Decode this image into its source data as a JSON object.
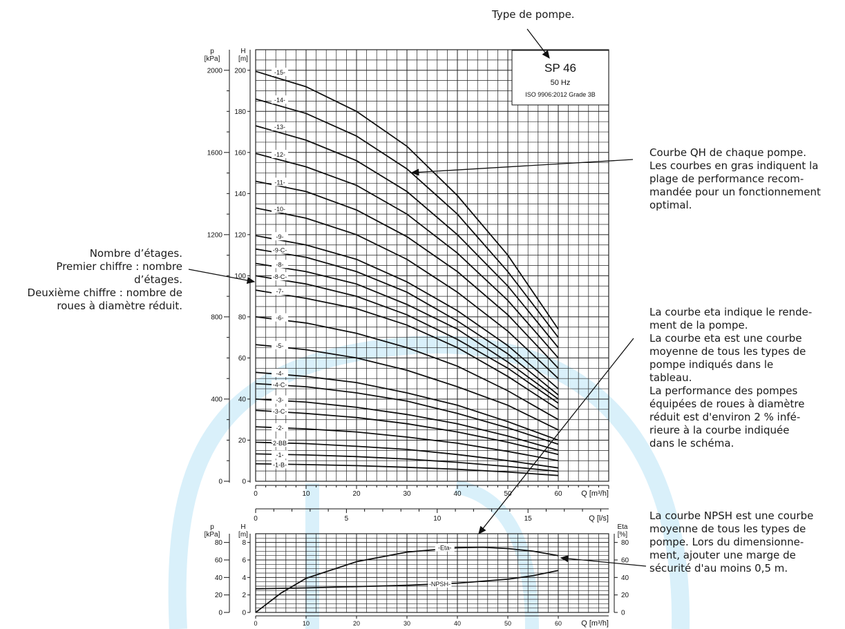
{
  "annotations": {
    "pump_type": "Type de pompe.",
    "qh_curve": "Courbe QH de chaque pompe.\nLes courbes en gras indiquent la\nplage de performance recom-\nmandée pour un fonctionnement\noptimal.",
    "stages": "Nombre d’étages.\nPremier chiffre : nombre\nd’étages.\nDeuxième chiffre : nombre de\nroues à diamètre réduit.",
    "eta_curve": "La courbe eta indique le rende-\nment de la pompe.\nLa courbe eta est une courbe\nmoyenne de tous les types de\npompe indiqués dans le\ntableau.\nLa performance des pompes\néquipées de roues à diamètre\nréduit est d'environ 2 % infé-\nrieure à la courbe indiquée\ndans le schéma.",
    "npsh_curve": "La courbe NPSH est une courbe\nmoyenne de tous les types de\npompe. Lors du dimensionne-\nment, ajouter une marge de\nsécurité d'au moins 0,5 m."
  },
  "title_box": {
    "model": "SP 46",
    "frequency": "50 Hz",
    "standard": "ISO 9906:2012 Grade 3B"
  },
  "colors": {
    "grid": "#222222",
    "curve": "#111111",
    "watermark": "#d9f0fa"
  },
  "chart_data": [
    {
      "type": "line",
      "xlabel": "Q [m³/h]",
      "ylabel": "H\n[m]",
      "ylabel_secondary": "p\n[kPa]",
      "x_ticks": [
        0,
        10,
        20,
        30,
        40,
        50,
        60
      ],
      "y_ticks": [
        0,
        20,
        40,
        60,
        80,
        100,
        120,
        140,
        160,
        180,
        200
      ],
      "p_ticks": [
        0,
        400,
        800,
        1200,
        1600,
        2000
      ],
      "xlim": [
        0,
        70
      ],
      "ylim": [
        0,
        210
      ],
      "grid": true,
      "series": [
        {
          "name": "15",
          "x": [
            0,
            10,
            20,
            30,
            40,
            50,
            60
          ],
          "y": [
            199.5,
            192,
            180,
            163,
            139,
            110,
            74
          ]
        },
        {
          "name": "14",
          "x": [
            0,
            10,
            20,
            30,
            40,
            50,
            60
          ],
          "y": [
            186,
            179,
            168,
            152,
            130,
            102,
            70
          ]
        },
        {
          "name": "13",
          "x": [
            0,
            10,
            20,
            30,
            40,
            50,
            60
          ],
          "y": [
            173,
            166,
            156,
            141,
            120,
            95,
            65
          ]
        },
        {
          "name": "12",
          "x": [
            0,
            10,
            20,
            30,
            40,
            50,
            60
          ],
          "y": [
            159.5,
            153,
            144,
            130,
            111,
            88,
            60
          ]
        },
        {
          "name": "11",
          "x": [
            0,
            10,
            20,
            30,
            40,
            50,
            60
          ],
          "y": [
            146,
            141,
            132,
            119,
            102,
            81,
            55
          ]
        },
        {
          "name": "10",
          "x": [
            0,
            10,
            20,
            30,
            40,
            50,
            60
          ],
          "y": [
            133,
            128,
            120,
            108,
            92,
            73,
            50
          ]
        },
        {
          "name": "9",
          "x": [
            0,
            10,
            20,
            30,
            40,
            50,
            60
          ],
          "y": [
            119.5,
            115,
            108,
            97,
            83,
            66,
            45
          ]
        },
        {
          "name": "9-C",
          "x": [
            0,
            10,
            20,
            30,
            40,
            50,
            60
          ],
          "y": [
            113,
            109,
            102,
            92,
            78,
            62,
            42
          ]
        },
        {
          "name": "8",
          "x": [
            0,
            10,
            20,
            30,
            40,
            50,
            60
          ],
          "y": [
            106,
            102,
            96,
            86,
            74,
            58,
            40
          ]
        },
        {
          "name": "8-C",
          "x": [
            0,
            10,
            20,
            30,
            40,
            50,
            60
          ],
          "y": [
            100,
            96,
            90,
            81,
            69,
            55,
            38
          ]
        },
        {
          "name": "7",
          "x": [
            0,
            10,
            20,
            30,
            40,
            50,
            60
          ],
          "y": [
            93,
            89,
            84,
            76,
            65,
            51,
            35
          ]
        },
        {
          "name": "6",
          "x": [
            0,
            10,
            20,
            30,
            40,
            50,
            60
          ],
          "y": [
            80,
            77,
            72,
            65,
            56,
            44,
            30
          ]
        },
        {
          "name": "5",
          "x": [
            0,
            10,
            20,
            30,
            40,
            50,
            60
          ],
          "y": [
            66.5,
            64,
            60,
            54,
            46,
            37,
            25
          ]
        },
        {
          "name": "4",
          "x": [
            0,
            10,
            20,
            30,
            40,
            50,
            60
          ],
          "y": [
            53,
            51,
            48,
            43,
            37,
            29,
            20
          ]
        },
        {
          "name": "4-C",
          "x": [
            0,
            10,
            20,
            30,
            40,
            50,
            60
          ],
          "y": [
            47.5,
            46,
            43,
            39,
            33,
            26,
            18
          ]
        },
        {
          "name": "3",
          "x": [
            0,
            10,
            20,
            30,
            40,
            50,
            60
          ],
          "y": [
            40,
            38.5,
            36,
            32.5,
            28,
            22,
            15
          ]
        },
        {
          "name": "3-C",
          "x": [
            0,
            10,
            20,
            30,
            40,
            50,
            60
          ],
          "y": [
            34.5,
            33,
            31,
            28,
            24,
            19,
            13
          ]
        },
        {
          "name": "2",
          "x": [
            0,
            10,
            20,
            30,
            40,
            50,
            60
          ],
          "y": [
            26.5,
            25.5,
            24,
            21.5,
            18.5,
            14.5,
            10
          ]
        },
        {
          "name": "2-BB",
          "x": [
            0,
            10,
            20,
            30,
            40,
            50,
            60
          ],
          "y": [
            19,
            18.3,
            17,
            15.5,
            13,
            10,
            6.5
          ]
        },
        {
          "name": "1",
          "x": [
            0,
            10,
            20,
            30,
            40,
            50,
            60
          ],
          "y": [
            13.3,
            12.8,
            12,
            10.8,
            9.2,
            7.2,
            4.8
          ]
        },
        {
          "name": "1-B",
          "x": [
            0,
            10,
            20,
            30,
            40,
            50,
            60
          ],
          "y": [
            8.5,
            8.1,
            7.6,
            6.8,
            5.8,
            4.5,
            2.8
          ]
        }
      ]
    },
    {
      "type": "line",
      "xlabel": "Q [m³/h]",
      "x2label": "Q [l/s]",
      "ylabel": "H\n[m]",
      "ylabel_secondary": "p\n[kPa]",
      "ylabel_right": "Eta\n[%]",
      "x_ticks": [
        0,
        10,
        20,
        30,
        40,
        50,
        60
      ],
      "x2_ticks": [
        0,
        5,
        10,
        15
      ],
      "y_ticks": [
        0,
        2,
        4,
        6,
        8
      ],
      "p_ticks": [
        0,
        20,
        40,
        60,
        80
      ],
      "eta_ticks": [
        0,
        20,
        40,
        60,
        80
      ],
      "xlim": [
        0,
        70
      ],
      "ylim": [
        0,
        9
      ],
      "grid": true,
      "series": [
        {
          "name": "Eta",
          "x": [
            0,
            5,
            10,
            20,
            30,
            40,
            45,
            50,
            55,
            60
          ],
          "y": [
            0,
            2.2,
            3.9,
            5.8,
            6.9,
            7.4,
            7.45,
            7.3,
            7,
            6.5
          ]
        },
        {
          "name": "NPSH",
          "x": [
            0,
            10,
            20,
            30,
            40,
            50,
            55,
            60
          ],
          "y": [
            2.7,
            2.8,
            2.95,
            3.1,
            3.35,
            3.8,
            4.2,
            4.8
          ]
        }
      ]
    }
  ]
}
